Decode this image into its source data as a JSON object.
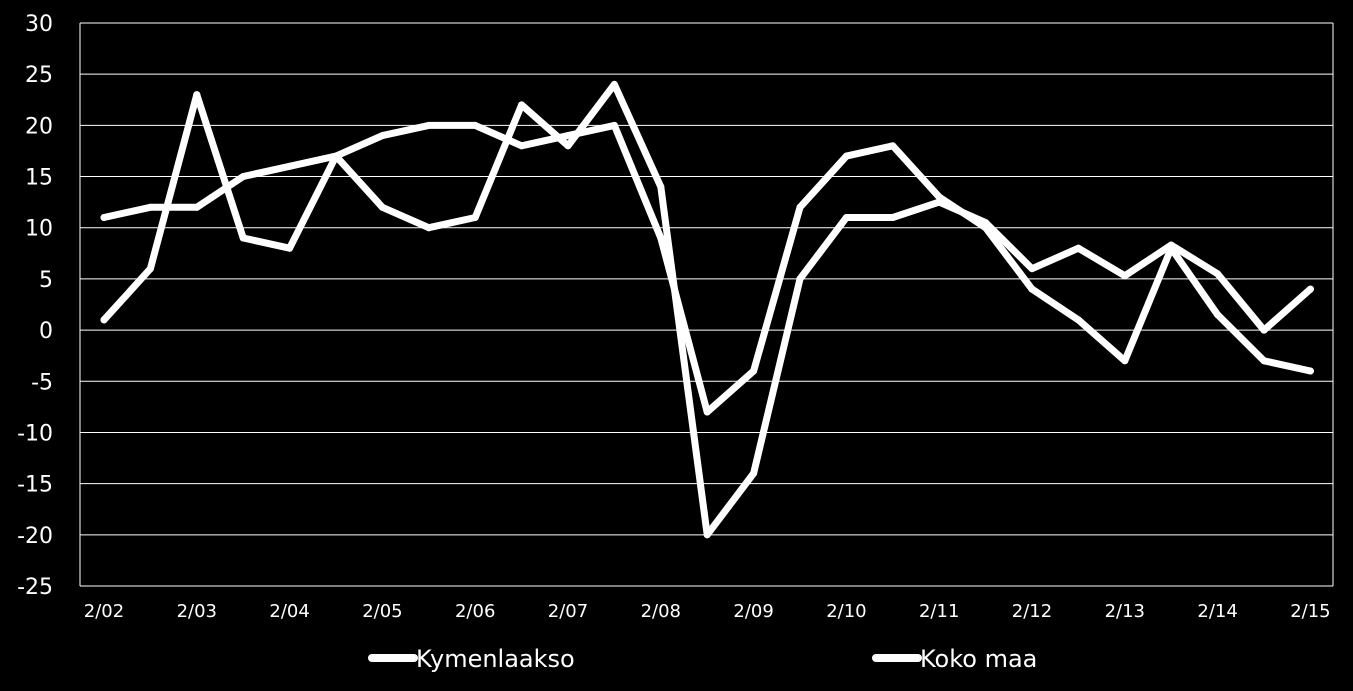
{
  "colors": {
    "background": "#000000",
    "line": "#ffffff",
    "grid": "#ffffff"
  },
  "chart_data": {
    "type": "line",
    "title": "",
    "xlabel": "",
    "ylabel": "",
    "ylim": [
      -25,
      30
    ],
    "yticks": [
      "30",
      "25",
      "20",
      "15",
      "10",
      "5",
      "0",
      "-5",
      "-10",
      "-15",
      "-20",
      "-25"
    ],
    "ytick_values": [
      30,
      25,
      20,
      15,
      10,
      5,
      0,
      -5,
      -10,
      -15,
      -20,
      -25
    ],
    "xtick_labels": [
      "2/02",
      "2/03",
      "2/04",
      "2/05",
      "2/06",
      "2/07",
      "2/08",
      "2/09",
      "2/10",
      "2/11",
      "2/12",
      "2/13",
      "2/14",
      "2/15"
    ],
    "grid": true,
    "legend_position": "bottom",
    "series": [
      {
        "name": "Kymenlaakso",
        "color": "#ffffff",
        "values": [
          1,
          6,
          23,
          9,
          8,
          17,
          12,
          10,
          11,
          22,
          18,
          24,
          14,
          -20,
          -14,
          5,
          11,
          11,
          12.5,
          10.5,
          6,
          8,
          5.3,
          8.3,
          5.5,
          0,
          4
        ]
      },
      {
        "name": "Koko maa",
        "color": "#ffffff",
        "values": [
          11,
          12,
          12,
          15,
          16,
          17,
          19,
          20,
          20,
          18,
          19,
          20,
          9,
          -8,
          -4,
          12,
          17,
          18,
          13,
          10,
          4,
          1,
          -3,
          8,
          1.5,
          -3,
          -4
        ]
      }
    ]
  }
}
